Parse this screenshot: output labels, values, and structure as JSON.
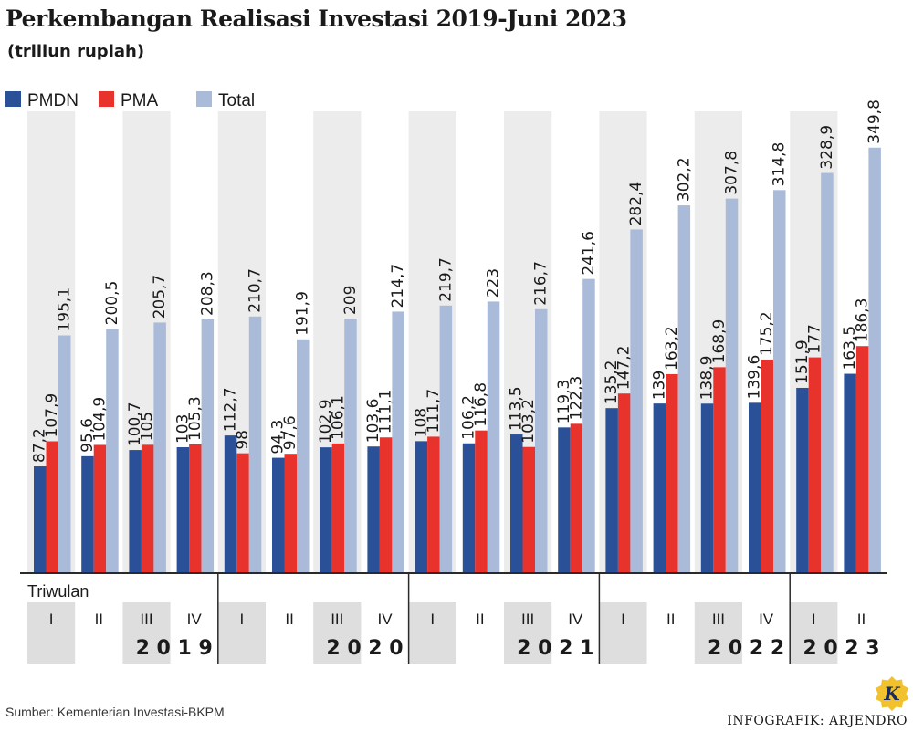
{
  "title": "Perkembangan Realisasi Investasi 2019-Juni 2023",
  "subtitle": "(triliun rupiah)",
  "source": "Sumber: Kementerian Investasi-BKPM",
  "credit": "INFOGRAFIK: ARJENDRO",
  "logo_letter": "K",
  "colors": {
    "pmdn": "#2a5098",
    "pma": "#e8322c",
    "total": "#a9bbd9",
    "column_shade": "#ececec",
    "cell_shade": "#dedede",
    "axis": "#2a2a2a",
    "logo": "#f2c12e"
  },
  "chart_data": {
    "type": "bar",
    "title": "Perkembangan Realisasi Investasi 2019-Juni 2023",
    "ylabel": "triliun rupiah",
    "xlabel": "Triwulan",
    "ylim": [
      0,
      380
    ],
    "grid": false,
    "legend": "top-left",
    "categories": [
      "I",
      "II",
      "III",
      "IV",
      "I",
      "II",
      "III",
      "IV",
      "I",
      "II",
      "III",
      "IV",
      "I",
      "II",
      "III",
      "IV",
      "I",
      "II"
    ],
    "category_labels": [
      "I",
      "II",
      "III",
      "IV",
      "I",
      "II",
      "III",
      "IV",
      "I",
      "II",
      "III",
      "IV",
      "I",
      "II",
      "III",
      "IV",
      "I",
      "II"
    ],
    "years": [
      {
        "label": "2 0 1 9",
        "count": 4
      },
      {
        "label": "2 0 2 0",
        "count": 4
      },
      {
        "label": "2 0 2 1",
        "count": 4
      },
      {
        "label": "2 0 2 2",
        "count": 4
      },
      {
        "label": "2 0 2 3",
        "count": 2
      }
    ],
    "series": [
      {
        "name": "PMDN",
        "key": "pmdn",
        "values": [
          87.2,
          95.6,
          100.7,
          103,
          112.7,
          94.3,
          102.9,
          103.6,
          108,
          106.2,
          113.5,
          119.3,
          135.2,
          139,
          138.9,
          139.6,
          151.9,
          163.5
        ],
        "labels": [
          "87,2",
          "95,6",
          "100,7",
          "103",
          "112,7",
          "94,3",
          "102,9",
          "103,6",
          "108",
          "106,2",
          "113,5",
          "119,3",
          "135,2",
          "139",
          "138,9",
          "139,6",
          "151,9",
          "163,5"
        ]
      },
      {
        "name": "PMA",
        "key": "pma",
        "values": [
          107.9,
          104.9,
          105,
          105.3,
          98,
          97.6,
          106.1,
          111.1,
          111.7,
          116.8,
          103.2,
          122.3,
          147.2,
          163.2,
          168.9,
          175.2,
          177,
          186.3
        ],
        "labels": [
          "107,9",
          "104,9",
          "105",
          "105,3",
          "98",
          "97,6",
          "106,1",
          "111,1",
          "111,7",
          "116,8",
          "103,2",
          "122,3",
          "147,2",
          "163,2",
          "168,9",
          "175,2",
          "177",
          "186,3"
        ]
      },
      {
        "name": "Total",
        "key": "total",
        "values": [
          195.1,
          200.5,
          205.7,
          208.3,
          210.7,
          191.9,
          209,
          214.7,
          219.7,
          223,
          216.7,
          241.6,
          282.4,
          302.2,
          307.8,
          314.8,
          328.9,
          349.8
        ],
        "labels": [
          "195,1",
          "200,5",
          "205,7",
          "208,3",
          "210,7",
          "191,9",
          "209",
          "214,7",
          "219,7",
          "223",
          "216,7",
          "241,6",
          "282,4",
          "302,2",
          "307,8",
          "314,8",
          "328,9",
          "349,8"
        ]
      }
    ]
  }
}
